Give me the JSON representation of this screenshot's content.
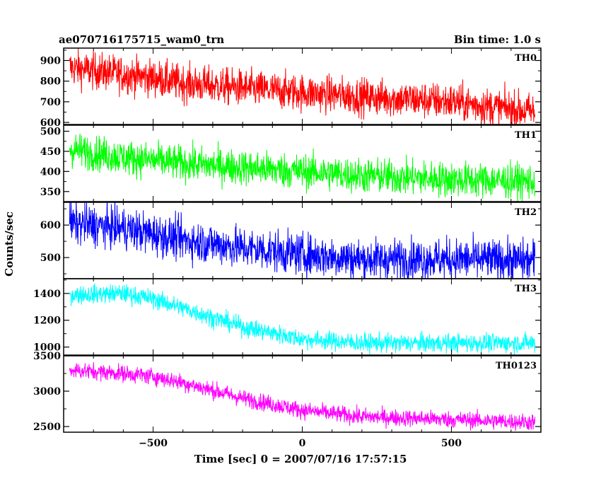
{
  "chart_data": {
    "type": "line",
    "title": "ae070716175715_wam0_trn",
    "subtitle": "Bin time: 1.0 s",
    "xlabel": "Time [sec] 0 = 2007/07/16 17:57:15",
    "ylabel": "Counts/sec",
    "xlim": [
      -800,
      800
    ],
    "x_range": [
      -780,
      780
    ],
    "x_ticks": [
      -500,
      0,
      500
    ],
    "x_tick_labels": [
      "−500",
      "0",
      "500"
    ],
    "grid": false,
    "panels": [
      {
        "label": "TH0",
        "color": "#ff0000",
        "ylim": [
          590,
          960
        ],
        "y_ticks": [
          600,
          700,
          800,
          900
        ],
        "y_tick_labels": [
          "600",
          "700",
          "800",
          "900"
        ],
        "trend_x": [
          -780,
          -700,
          -500,
          -400,
          -100,
          0,
          200,
          500,
          780
        ],
        "trend_y": [
          865,
          850,
          815,
          790,
          755,
          745,
          725,
          700,
          650
        ],
        "noise": 45
      },
      {
        "label": "TH1",
        "color": "#00ff00",
        "ylim": [
          325,
          515
        ],
        "y_ticks": [
          350,
          400,
          450,
          500
        ],
        "y_tick_labels": [
          "350",
          "400",
          "450",
          "500"
        ],
        "trend_x": [
          -780,
          -600,
          -400,
          -100,
          0,
          200,
          500,
          780
        ],
        "trend_y": [
          455,
          435,
          420,
          405,
          400,
          390,
          380,
          375
        ],
        "noise": 22
      },
      {
        "label": "TH2",
        "color": "#0000ff",
        "ylim": [
          435,
          670
        ],
        "y_ticks": [
          500,
          600
        ],
        "y_tick_labels": [
          "500",
          "600"
        ],
        "trend_x": [
          -780,
          -600,
          -400,
          -200,
          0,
          200,
          500,
          780
        ],
        "trend_y": [
          605,
          590,
          555,
          530,
          510,
          495,
          495,
          490
        ],
        "noise": 32
      },
      {
        "label": "TH3",
        "color": "#00ffff",
        "ylim": [
          940,
          1510
        ],
        "y_ticks": [
          1000,
          1200,
          1400
        ],
        "y_tick_labels": [
          "1000",
          "1200",
          "1400"
        ],
        "trend_x": [
          -780,
          -600,
          -500,
          -400,
          -200,
          0,
          200,
          500,
          780
        ],
        "trend_y": [
          1390,
          1400,
          1360,
          1290,
          1150,
          1060,
          1030,
          1030,
          1030
        ],
        "noise": 35
      },
      {
        "label": "TH0123",
        "color": "#ff00ff",
        "ylim": [
          2420,
          3500
        ],
        "y_ticks": [
          2500,
          3000,
          3500
        ],
        "y_tick_labels": [
          "2500",
          "3000",
          "3500"
        ],
        "trend_x": [
          -780,
          -600,
          -500,
          -400,
          -200,
          0,
          200,
          500,
          780
        ],
        "trend_y": [
          3300,
          3250,
          3210,
          3120,
          2900,
          2730,
          2640,
          2600,
          2560
        ],
        "noise": 60
      }
    ]
  }
}
